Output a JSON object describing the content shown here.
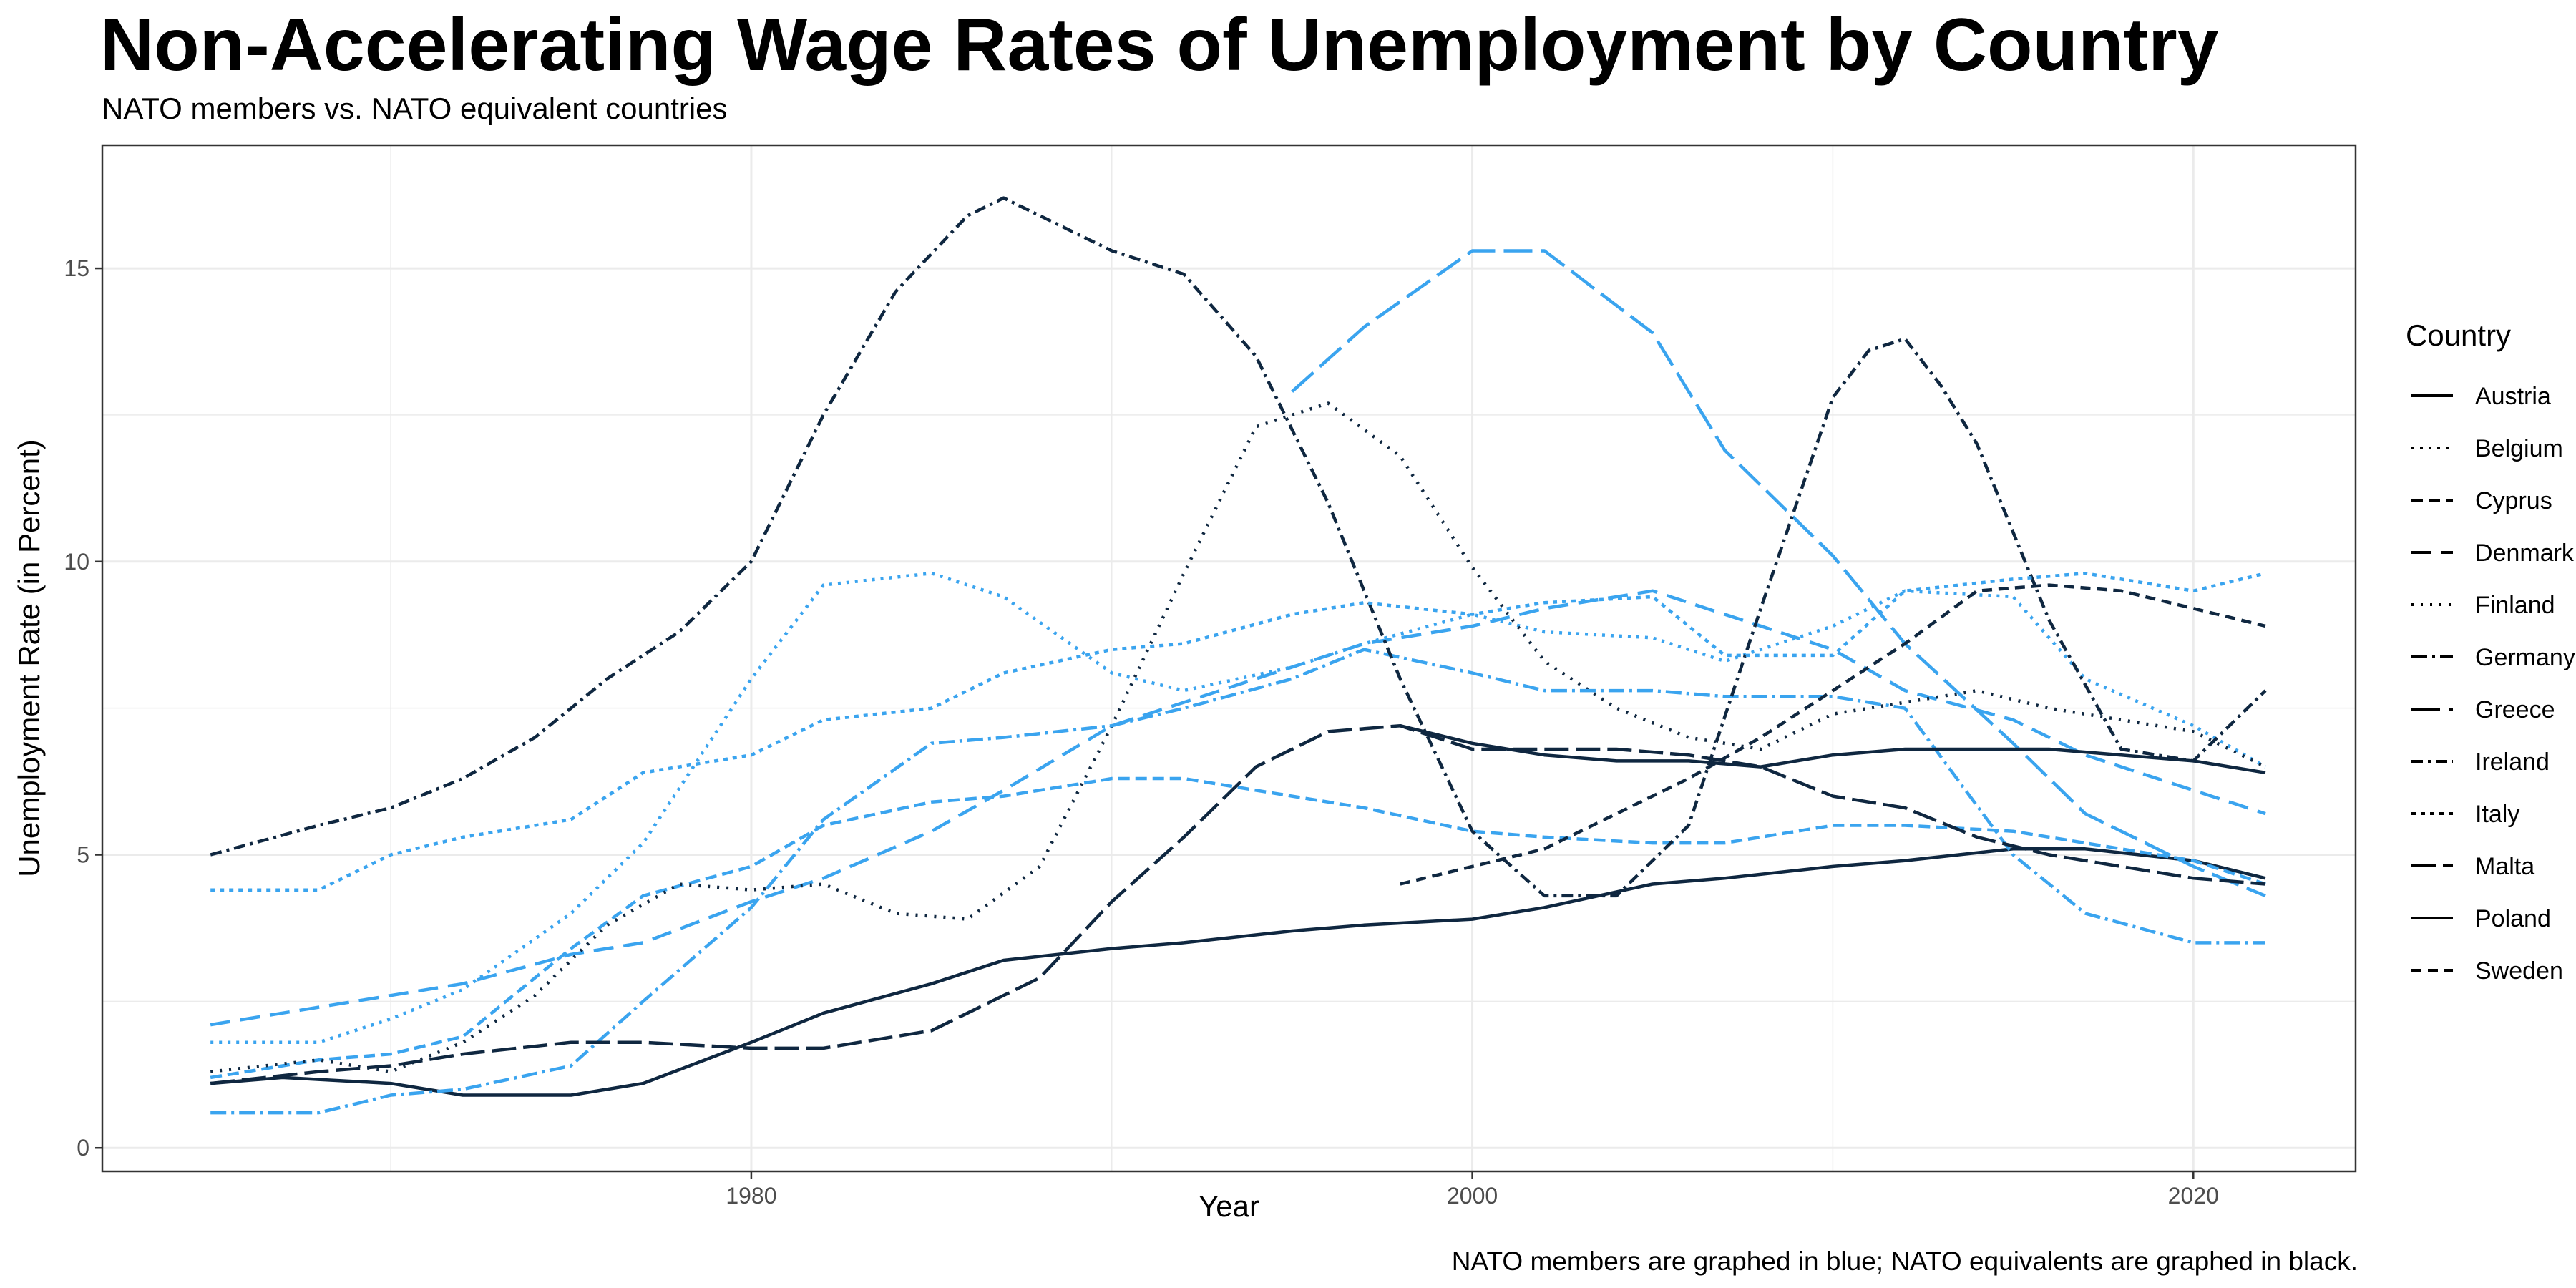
{
  "title": "Non-Accelerating Wage Rates of Unemployment by Country",
  "subtitle": "NATO members vs. NATO equivalent countries",
  "caption": "NATO members are graphed in blue; NATO equivalents are graphed in black.",
  "colors": {
    "nato": "#3aa4ef",
    "equivalent": "#0f2740",
    "grid": "#ebebeb",
    "panel_border": "#333333"
  },
  "chart_data": {
    "type": "line",
    "xlabel": "Year",
    "ylabel": "Unemployment Rate (in Percent)",
    "xlim": [
      1962,
      2024.5
    ],
    "ylim": [
      -0.4,
      17.1
    ],
    "x_ticks": [
      1980,
      2000,
      2020
    ],
    "y_ticks": [
      0,
      5,
      10,
      15
    ],
    "legend_title": "Country",
    "legend_position": "right",
    "grid": true,
    "series": [
      {
        "name": "Austria",
        "group": "equivalent",
        "dash": "",
        "x": [
          1965,
          1967,
          1970,
          1972,
          1975,
          1977,
          1980,
          1982,
          1985,
          1987,
          1990,
          1992,
          1995,
          1997,
          2000,
          2002,
          2005,
          2007,
          2010,
          2012,
          2015,
          2017,
          2020,
          2022
        ],
        "y": [
          1.1,
          1.2,
          1.1,
          0.9,
          0.9,
          1.1,
          1.8,
          2.3,
          2.8,
          3.2,
          3.4,
          3.5,
          3.7,
          3.8,
          3.9,
          4.1,
          4.5,
          4.6,
          4.8,
          4.9,
          5.1,
          5.1,
          4.9,
          4.6
        ]
      },
      {
        "name": "Belgium",
        "group": "nato",
        "dash": "4,8",
        "x": [
          1965,
          1968,
          1970,
          1972,
          1975,
          1977,
          1980,
          1982,
          1985,
          1987,
          1990,
          1992,
          1995,
          1997,
          2000,
          2002,
          2005,
          2007,
          2010,
          2012,
          2015,
          2017,
          2020,
          2022
        ],
        "y": [
          1.8,
          1.8,
          2.2,
          2.7,
          4.0,
          5.2,
          8.0,
          9.6,
          9.8,
          9.4,
          8.1,
          7.8,
          8.2,
          8.6,
          9.1,
          8.8,
          8.7,
          8.3,
          8.9,
          9.5,
          9.4,
          8.0,
          7.2,
          6.5
        ]
      },
      {
        "name": "Cyprus",
        "group": "nato",
        "dash": "16,8",
        "x": [
          1965,
          1968,
          1970,
          1972,
          1975,
          1977,
          1980,
          1982,
          1985,
          1987,
          1990,
          1992,
          1995,
          1997,
          2000,
          2002,
          2005,
          2007,
          2010,
          2012,
          2015,
          2017,
          2020,
          2022
        ],
        "y": [
          1.2,
          1.5,
          1.6,
          1.9,
          3.4,
          4.3,
          4.8,
          5.5,
          5.9,
          6.0,
          6.3,
          6.3,
          6.0,
          5.8,
          5.4,
          5.3,
          5.2,
          5.2,
          5.5,
          5.5,
          5.4,
          5.2,
          4.9,
          4.5
        ]
      },
      {
        "name": "Denmark",
        "group": "nato",
        "dash": "28,14",
        "x": [
          1965,
          1968,
          1970,
          1972,
          1975,
          1977,
          1980,
          1982,
          1985,
          1987,
          1990,
          1992,
          1995,
          1997,
          2000,
          2002,
          2005,
          2007,
          2010,
          2012,
          2015,
          2017,
          2020,
          2022
        ],
        "y": [
          2.1,
          2.4,
          2.6,
          2.8,
          3.3,
          3.5,
          4.2,
          4.6,
          5.4,
          6.1,
          7.2,
          7.6,
          8.2,
          8.6,
          8.9,
          9.2,
          9.5,
          9.1,
          8.5,
          7.8,
          7.3,
          6.7,
          6.1,
          5.7
        ]
      },
      {
        "name": "Finland",
        "group": "equivalent",
        "dash": "3,10",
        "x": [
          1965,
          1968,
          1970,
          1972,
          1974,
          1976,
          1978,
          1980,
          1982,
          1984,
          1986,
          1988,
          1990,
          1992,
          1994,
          1996,
          1998,
          2000,
          2002,
          2004,
          2006,
          2008,
          2010,
          2012,
          2014,
          2016,
          2018,
          2020,
          2022
        ],
        "y": [
          1.3,
          1.5,
          1.3,
          1.8,
          2.6,
          3.8,
          4.5,
          4.4,
          4.5,
          4.0,
          3.9,
          4.8,
          7.2,
          9.8,
          12.3,
          12.7,
          11.8,
          9.9,
          8.3,
          7.5,
          7.0,
          6.8,
          7.4,
          7.6,
          7.8,
          7.5,
          7.3,
          7.1,
          6.5
        ]
      },
      {
        "name": "Germany",
        "group": "nato",
        "dash": "22,7,4,7",
        "x": [
          1965,
          1968,
          1970,
          1972,
          1975,
          1977,
          1980,
          1982,
          1985,
          1987,
          1990,
          1992,
          1995,
          1997,
          2000,
          2002,
          2005,
          2007,
          2010,
          2012,
          2015,
          2017,
          2020,
          2022
        ],
        "y": [
          0.6,
          0.6,
          0.9,
          1.0,
          1.4,
          2.5,
          4.1,
          5.6,
          6.9,
          7.0,
          7.2,
          7.5,
          8.0,
          8.5,
          8.1,
          7.8,
          7.8,
          7.7,
          7.7,
          7.5,
          5.0,
          4.0,
          3.5,
          3.5
        ]
      },
      {
        "name": "Greece",
        "group": "nato",
        "dash": "40,12",
        "x": [
          1995,
          1997,
          2000,
          2002,
          2005,
          2007,
          2010,
          2012,
          2015,
          2017,
          2020,
          2022
        ],
        "y": [
          12.9,
          14.0,
          15.3,
          15.3,
          13.9,
          11.9,
          10.1,
          8.6,
          6.9,
          5.7,
          4.8,
          4.3
        ]
      },
      {
        "name": "Ireland",
        "group": "equivalent",
        "dash": "16,7,4,7",
        "x": [
          1965,
          1968,
          1970,
          1972,
          1974,
          1976,
          1978,
          1980,
          1982,
          1984,
          1986,
          1987,
          1988,
          1990,
          1992,
          1994,
          1996,
          1998,
          2000,
          2002,
          2004,
          2006,
          2008,
          2010,
          2011,
          2012,
          2013,
          2014,
          2016,
          2018,
          2020,
          2022
        ],
        "y": [
          5.0,
          5.5,
          5.8,
          6.3,
          7.0,
          8.0,
          8.8,
          10.0,
          12.5,
          14.6,
          15.9,
          16.2,
          15.9,
          15.3,
          14.9,
          13.5,
          11.0,
          8.0,
          5.4,
          4.3,
          4.3,
          5.5,
          9.2,
          12.8,
          13.6,
          13.8,
          13.0,
          12.0,
          9.0,
          6.8,
          6.6,
          7.8
        ]
      },
      {
        "name": "Italy",
        "group": "nato",
        "dash": "6,7",
        "x": [
          1965,
          1968,
          1970,
          1972,
          1975,
          1977,
          1980,
          1982,
          1985,
          1987,
          1990,
          1992,
          1995,
          1997,
          2000,
          2002,
          2005,
          2007,
          2010,
          2012,
          2015,
          2017,
          2020,
          2022
        ],
        "y": [
          4.4,
          4.4,
          5.0,
          5.3,
          5.6,
          6.4,
          6.7,
          7.3,
          7.5,
          8.1,
          8.5,
          8.6,
          9.1,
          9.3,
          9.1,
          9.3,
          9.4,
          8.4,
          8.4,
          9.5,
          9.7,
          9.8,
          9.5,
          9.8
        ]
      },
      {
        "name": "Malta",
        "group": "equivalent",
        "dash": "34,10",
        "x": [
          1965,
          1968,
          1970,
          1972,
          1975,
          1977,
          1980,
          1982,
          1985,
          1988,
          1990,
          1992,
          1994,
          1996,
          1998,
          2000,
          2002,
          2004,
          2006,
          2008,
          2010,
          2012,
          2014,
          2016,
          2018,
          2020,
          2022
        ],
        "y": [
          1.1,
          1.3,
          1.4,
          1.6,
          1.8,
          1.8,
          1.7,
          1.7,
          2.0,
          2.9,
          4.2,
          5.3,
          6.5,
          7.1,
          7.2,
          6.8,
          6.8,
          6.8,
          6.7,
          6.5,
          6.0,
          5.8,
          5.3,
          5.0,
          4.8,
          4.6,
          4.5
        ]
      },
      {
        "name": "Poland",
        "group": "equivalent",
        "dash": "",
        "x": [
          1998,
          2000,
          2002,
          2004,
          2006,
          2008,
          2010,
          2012,
          2014,
          2016,
          2018,
          2020,
          2022
        ],
        "y": [
          7.2,
          6.9,
          6.7,
          6.6,
          6.6,
          6.5,
          6.7,
          6.8,
          6.8,
          6.8,
          6.7,
          6.6,
          6.4
        ]
      },
      {
        "name": "Sweden",
        "group": "equivalent",
        "dash": "14,9",
        "x": [
          1998,
          2000,
          2002,
          2004,
          2006,
          2008,
          2010,
          2012,
          2014,
          2016,
          2018,
          2020,
          2022
        ],
        "y": [
          4.5,
          4.8,
          5.1,
          5.7,
          6.3,
          7.0,
          7.8,
          8.6,
          9.5,
          9.6,
          9.5,
          9.2,
          8.9
        ]
      }
    ]
  }
}
